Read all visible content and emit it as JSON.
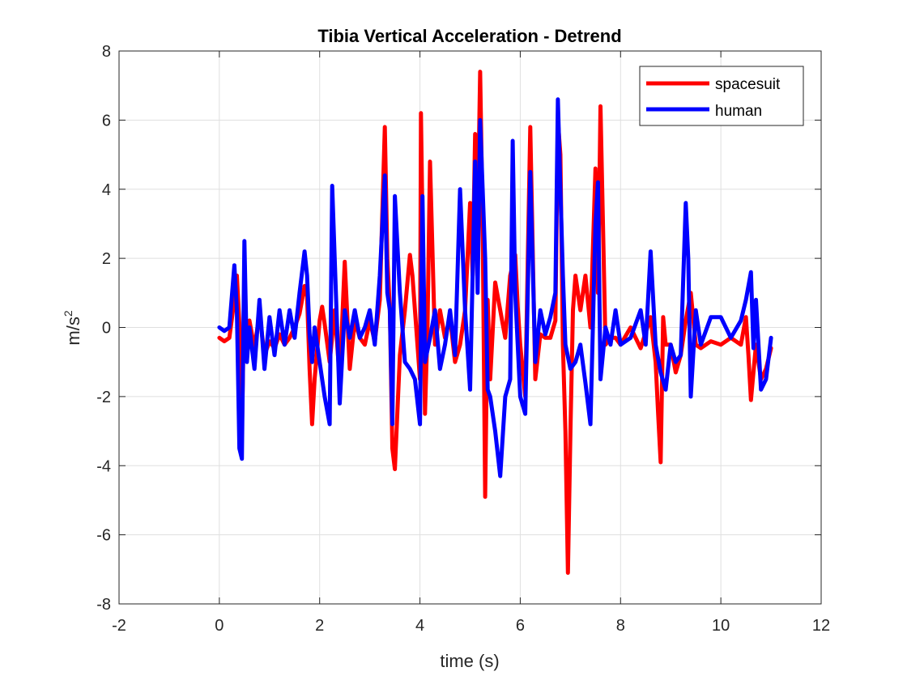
{
  "chart_data": {
    "type": "line",
    "title": "Tibia Vertical Acceleration - Detrend",
    "xlabel": "time (s)",
    "ylabel_base": "m/s",
    "ylabel_sup": "2",
    "xlim": [
      -2,
      12
    ],
    "ylim": [
      -8,
      8
    ],
    "xticks": [
      -2,
      0,
      2,
      4,
      6,
      8,
      10,
      12
    ],
    "yticks": [
      -8,
      -6,
      -4,
      -2,
      0,
      2,
      4,
      6,
      8
    ],
    "grid": true,
    "legend_position": "top-right",
    "series": [
      {
        "name": "spacesuit",
        "color": "#ff0000",
        "x": [
          0,
          0.1,
          0.2,
          0.3,
          0.35,
          0.42,
          0.45,
          0.5,
          0.55,
          0.6,
          0.7,
          0.8,
          0.9,
          1.0,
          1.1,
          1.2,
          1.3,
          1.4,
          1.5,
          1.6,
          1.7,
          1.75,
          1.8,
          1.85,
          1.9,
          2.0,
          2.05,
          2.1,
          2.2,
          2.3,
          2.4,
          2.5,
          2.6,
          2.7,
          2.8,
          2.9,
          3.0,
          3.1,
          3.2,
          3.3,
          3.35,
          3.4,
          3.45,
          3.5,
          3.6,
          3.7,
          3.8,
          3.85,
          3.9,
          4.0,
          4.02,
          4.05,
          4.1,
          4.15,
          4.2,
          4.3,
          4.4,
          4.5,
          4.6,
          4.7,
          4.8,
          4.9,
          5.0,
          5.05,
          5.1,
          5.15,
          5.2,
          5.25,
          5.3,
          5.35,
          5.4,
          5.5,
          5.6,
          5.7,
          5.8,
          5.9,
          5.95,
          6.0,
          6.1,
          6.2,
          6.3,
          6.4,
          6.5,
          6.6,
          6.7,
          6.75,
          6.8,
          6.85,
          6.9,
          6.95,
          7.0,
          7.05,
          7.1,
          7.2,
          7.3,
          7.4,
          7.5,
          7.55,
          7.6,
          7.7,
          7.8,
          7.9,
          8.0,
          8.2,
          8.4,
          8.6,
          8.7,
          8.75,
          8.8,
          8.85,
          8.9,
          9.0,
          9.1,
          9.2,
          9.3,
          9.4,
          9.5,
          9.6,
          9.8,
          10.0,
          10.2,
          10.4,
          10.5,
          10.55,
          10.6,
          10.7,
          10.8,
          10.9,
          11.0
        ],
        "values": [
          -0.3,
          -0.4,
          -0.3,
          0.8,
          1.5,
          -0.5,
          -3.0,
          1.0,
          -0.8,
          0.2,
          -0.6,
          0.4,
          -0.8,
          -0.4,
          -0.6,
          -0.2,
          -0.5,
          -0.3,
          0.0,
          0.4,
          1.2,
          0.9,
          -1.2,
          -2.8,
          -1.5,
          0.2,
          0.6,
          0.1,
          -1.0,
          0.5,
          -1.5,
          1.9,
          -1.2,
          0.2,
          -0.3,
          -0.5,
          0.2,
          -0.4,
          0.8,
          5.8,
          2.0,
          0.5,
          -3.5,
          -4.1,
          -0.8,
          0.5,
          2.1,
          1.5,
          0.5,
          -1.5,
          6.2,
          3.0,
          -2.5,
          0.0,
          4.8,
          -0.5,
          0.5,
          -0.3,
          0.3,
          -1.0,
          -0.5,
          0.5,
          3.6,
          1.5,
          5.6,
          3.0,
          7.4,
          3.0,
          -4.9,
          0.8,
          -1.5,
          1.3,
          0.5,
          -0.3,
          1.5,
          2.1,
          0.6,
          -0.5,
          -2.0,
          5.8,
          -1.5,
          -0.2,
          -0.3,
          -0.3,
          0.2,
          6.0,
          5.0,
          -0.5,
          -3.0,
          -7.1,
          -3.0,
          0.5,
          1.5,
          0.5,
          1.5,
          0.0,
          4.6,
          1.0,
          6.4,
          -0.5,
          -0.3,
          -0.3,
          -0.5,
          0.0,
          -0.6,
          0.3,
          -1.0,
          -2.5,
          -3.9,
          0.3,
          -0.5,
          -0.5,
          -1.3,
          -0.8,
          0.2,
          1.0,
          -0.5,
          -0.6,
          -0.4,
          -0.5,
          -0.3,
          -0.5,
          0.3,
          -0.8,
          -2.1,
          -0.5,
          -1.5,
          -1.2,
          -0.6
        ]
      },
      {
        "name": "human",
        "color": "#0000ff",
        "x": [
          0,
          0.1,
          0.2,
          0.3,
          0.35,
          0.4,
          0.45,
          0.5,
          0.55,
          0.6,
          0.7,
          0.8,
          0.9,
          1.0,
          1.1,
          1.2,
          1.3,
          1.4,
          1.5,
          1.6,
          1.7,
          1.75,
          1.8,
          1.85,
          1.9,
          2.0,
          2.1,
          2.2,
          2.25,
          2.3,
          2.4,
          2.5,
          2.6,
          2.7,
          2.8,
          2.9,
          3.0,
          3.1,
          3.2,
          3.3,
          3.35,
          3.4,
          3.45,
          3.5,
          3.6,
          3.7,
          3.8,
          3.9,
          4.0,
          4.05,
          4.1,
          4.2,
          4.3,
          4.4,
          4.5,
          4.6,
          4.7,
          4.8,
          4.9,
          5.0,
          5.1,
          5.15,
          5.2,
          5.3,
          5.35,
          5.4,
          5.5,
          5.6,
          5.7,
          5.8,
          5.85,
          5.9,
          6.0,
          6.1,
          6.2,
          6.3,
          6.4,
          6.5,
          6.6,
          6.7,
          6.75,
          6.8,
          6.85,
          6.9,
          7.0,
          7.1,
          7.2,
          7.3,
          7.4,
          7.5,
          7.55,
          7.6,
          7.7,
          7.8,
          7.9,
          8.0,
          8.2,
          8.4,
          8.5,
          8.6,
          8.7,
          8.8,
          8.9,
          9.0,
          9.1,
          9.2,
          9.3,
          9.35,
          9.4,
          9.5,
          9.6,
          9.8,
          10.0,
          10.2,
          10.4,
          10.5,
          10.6,
          10.65,
          10.7,
          10.8,
          10.9,
          11.0
        ],
        "values": [
          0.0,
          -0.1,
          0.0,
          1.8,
          0.5,
          -3.5,
          -3.8,
          2.5,
          -1.0,
          0.0,
          -1.2,
          0.8,
          -1.2,
          0.3,
          -0.8,
          0.5,
          -0.5,
          0.5,
          -0.3,
          1.0,
          2.2,
          1.5,
          -0.2,
          -1.0,
          0.0,
          -1.0,
          -2.0,
          -2.8,
          4.1,
          2.0,
          -2.2,
          0.5,
          -0.3,
          0.5,
          -0.3,
          0.0,
          0.5,
          -0.5,
          1.5,
          4.4,
          1.0,
          0.5,
          -2.8,
          3.8,
          1.0,
          -1.0,
          -1.2,
          -1.5,
          -2.8,
          3.8,
          -1.0,
          -0.3,
          0.5,
          -1.2,
          -0.5,
          0.5,
          -0.8,
          4.0,
          0.5,
          -1.8,
          4.8,
          1.0,
          6.0,
          2.0,
          -1.8,
          -2.0,
          -3.0,
          -4.3,
          -2.0,
          -1.5,
          5.4,
          1.0,
          -2.0,
          -2.5,
          4.5,
          -1.0,
          0.5,
          -0.2,
          0.3,
          1.0,
          6.6,
          4.0,
          1.5,
          -0.5,
          -1.2,
          -1.0,
          -0.5,
          -1.6,
          -2.8,
          3.0,
          4.2,
          -1.5,
          0.0,
          -0.5,
          0.5,
          -0.5,
          -0.3,
          0.5,
          -0.5,
          2.2,
          -0.5,
          -1.3,
          -1.8,
          -0.5,
          -1.0,
          -0.8,
          3.6,
          2.0,
          -2.0,
          0.5,
          -0.5,
          0.3,
          0.3,
          -0.3,
          0.2,
          0.8,
          1.6,
          -0.6,
          0.8,
          -1.8,
          -1.5,
          -0.3
        ]
      }
    ]
  }
}
